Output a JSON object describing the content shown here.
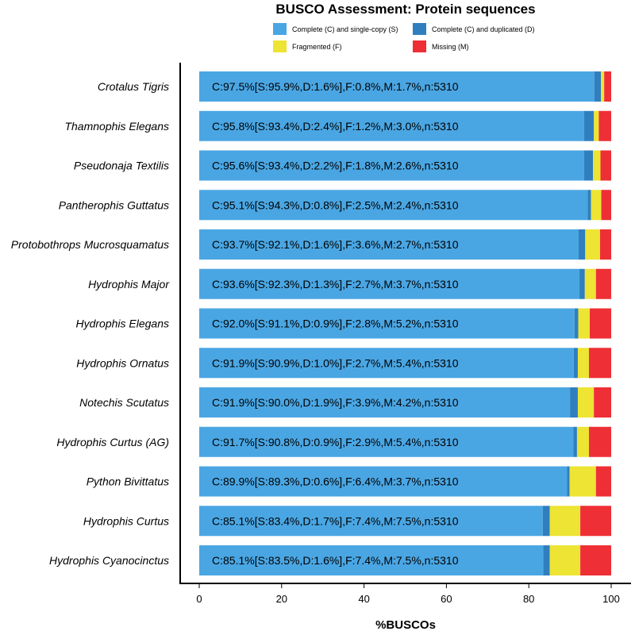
{
  "chart_data": {
    "type": "bar",
    "orientation": "horizontal",
    "stacked": true,
    "title": "BUSCO Assessment: Protein sequences",
    "xlabel": "%BUSCOs",
    "ylabel": "",
    "xlim": [
      0,
      100
    ],
    "xticks": [
      "0",
      "20",
      "40",
      "60",
      "80",
      "100"
    ],
    "legend_position": "top",
    "grid": false,
    "categories": [
      "Crotalus Tigris",
      "Thamnophis Elegans",
      "Pseudonaja Textilis",
      "Pantherophis Guttatus",
      "Protobothrops Mucrosquamatus",
      "Hydrophis Major",
      "Hydrophis Elegans",
      "Hydrophis Ornatus",
      "Notechis Scutatus",
      "Hydrophis Curtus (AG)",
      "Python Bivittatus",
      "Hydrophis Curtus",
      "Hydrophis Cyanocinctus"
    ],
    "series": [
      {
        "name": "Complete (C) and single-copy (S)",
        "color": "#4aa6e3",
        "values": [
          95.9,
          93.4,
          93.4,
          94.3,
          92.1,
          92.3,
          91.1,
          90.9,
          90.0,
          90.8,
          89.3,
          83.4,
          83.5
        ]
      },
      {
        "name": "Complete (C) and duplicated (D)",
        "color": "#2f7fbf",
        "values": [
          1.6,
          2.4,
          2.2,
          0.8,
          1.6,
          1.3,
          0.9,
          1.0,
          1.9,
          0.9,
          0.6,
          1.7,
          1.6
        ]
      },
      {
        "name": "Fragmented (F)",
        "color": "#ede433",
        "values": [
          0.8,
          1.2,
          1.8,
          2.5,
          3.6,
          2.7,
          2.8,
          2.7,
          3.9,
          2.9,
          6.4,
          7.4,
          7.4
        ]
      },
      {
        "name": "Missing (M)",
        "color": "#ee2f35",
        "values": [
          1.7,
          3.0,
          2.6,
          2.4,
          2.7,
          3.7,
          5.2,
          5.4,
          4.2,
          5.4,
          3.7,
          7.5,
          7.5
        ]
      }
    ],
    "bar_labels": [
      "C:97.5%[S:95.9%,D:1.6%],F:0.8%,M:1.7%,n:5310",
      "C:95.8%[S:93.4%,D:2.4%],F:1.2%,M:3.0%,n:5310",
      "C:95.6%[S:93.4%,D:2.2%],F:1.8%,M:2.6%,n:5310",
      "C:95.1%[S:94.3%,D:0.8%],F:2.5%,M:2.4%,n:5310",
      "C:93.7%[S:92.1%,D:1.6%],F:3.6%,M:2.7%,n:5310",
      "C:93.6%[S:92.3%,D:1.3%],F:2.7%,M:3.7%,n:5310",
      "C:92.0%[S:91.1%,D:0.9%],F:2.8%,M:5.2%,n:5310",
      "C:91.9%[S:90.9%,D:1.0%],F:2.7%,M:5.4%,n:5310",
      "C:91.9%[S:90.0%,D:1.9%],F:3.9%,M:4.2%,n:5310",
      "C:91.7%[S:90.8%,D:0.9%],F:2.9%,M:5.4%,n:5310",
      "C:89.9%[S:89.3%,D:0.6%],F:6.4%,M:3.7%,n:5310",
      "C:85.1%[S:83.4%,D:1.7%],F:7.4%,M:7.5%,n:5310",
      "C:85.1%[S:83.5%,D:1.6%],F:7.4%,M:7.5%,n:5310"
    ]
  }
}
